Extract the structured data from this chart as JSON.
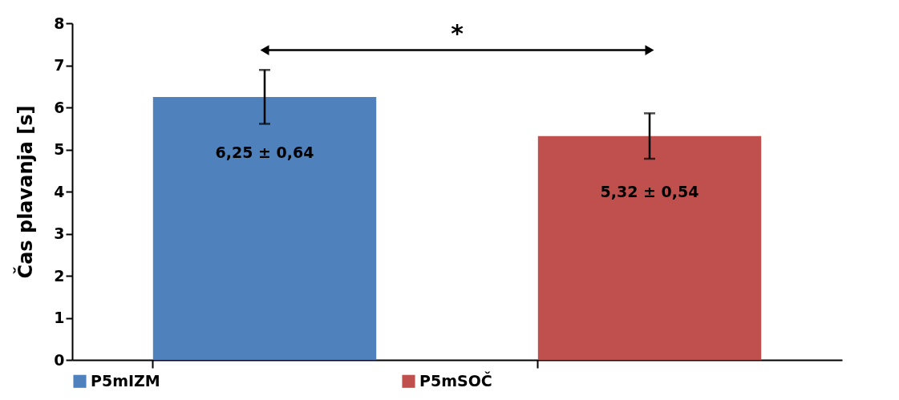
{
  "chart_data": {
    "type": "bar",
    "ylabel": "Čas plavanja [s]",
    "categories": [
      null,
      null
    ],
    "series": [
      {
        "name": "P5mIZM",
        "color": "#4f81bd",
        "values": [
          6.25,
          null
        ],
        "errors": [
          0.64,
          null
        ],
        "value_labels": [
          "6,25 ± 0,64",
          null
        ]
      },
      {
        "name": "P5mSOČ",
        "color": "#c0504d",
        "values": [
          null,
          5.32
        ],
        "errors": [
          null,
          0.54
        ],
        "value_labels": [
          null,
          "5,32 ± 0,54"
        ]
      }
    ],
    "ylim": [
      0,
      8
    ],
    "yticks": [
      0,
      1,
      2,
      3,
      4,
      5,
      6,
      7,
      8
    ],
    "grid": false,
    "legend": "bottom",
    "tick_labels": "y",
    "annotations": [
      "*"
    ]
  }
}
